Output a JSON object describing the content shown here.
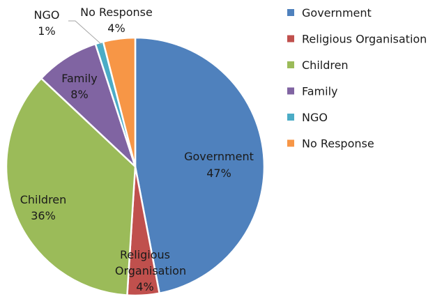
{
  "chart_data": {
    "type": "pie",
    "title": "",
    "legend_position": "right",
    "slices": [
      {
        "label": "Government",
        "value": 47,
        "display": "47%",
        "color": "#4F81BD"
      },
      {
        "label": "Religious Organisation",
        "value": 4,
        "display": "4%",
        "color": "#C0504D"
      },
      {
        "label": "Children",
        "value": 36,
        "display": "36%",
        "color": "#9BBB59"
      },
      {
        "label": "Family",
        "value": 8,
        "display": "8%",
        "color": "#8064A2"
      },
      {
        "label": "NGO",
        "value": 1,
        "display": "1%",
        "color": "#4BACC6"
      },
      {
        "label": "No Response",
        "value": 4,
        "display": "4%",
        "color": "#F79646"
      }
    ],
    "data_labels": {
      "government": {
        "name": "Government",
        "pct": "47%"
      },
      "religious": {
        "line1": "Religious",
        "line2": "Organisation",
        "pct": "4%"
      },
      "children": {
        "name": "Children",
        "pct": "36%"
      },
      "family": {
        "name": "Family",
        "pct": "8%"
      },
      "ngo": {
        "name": "NGO",
        "pct": "1%"
      },
      "no_response": {
        "name": "No Response",
        "pct": "4%"
      }
    }
  }
}
